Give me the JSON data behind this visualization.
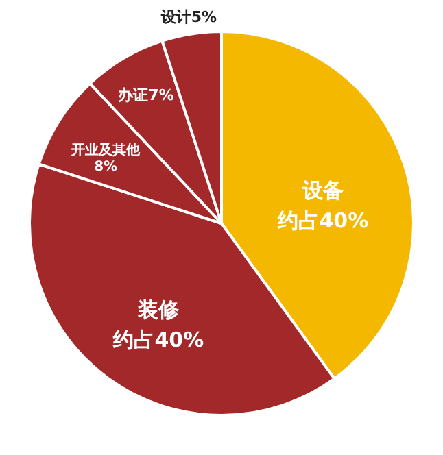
{
  "chart_data": {
    "type": "pie",
    "categories": [
      "设备",
      "装修",
      "开业及其他",
      "办证",
      "设计"
    ],
    "values": [
      40,
      40,
      8,
      7,
      5
    ],
    "value_labels": [
      "约占40%",
      "约占40%",
      "8%",
      "7%",
      "5%"
    ],
    "colors": [
      "#f5b800",
      "#a3282a",
      "#a3282a",
      "#a3282a",
      "#a3282a"
    ]
  }
}
